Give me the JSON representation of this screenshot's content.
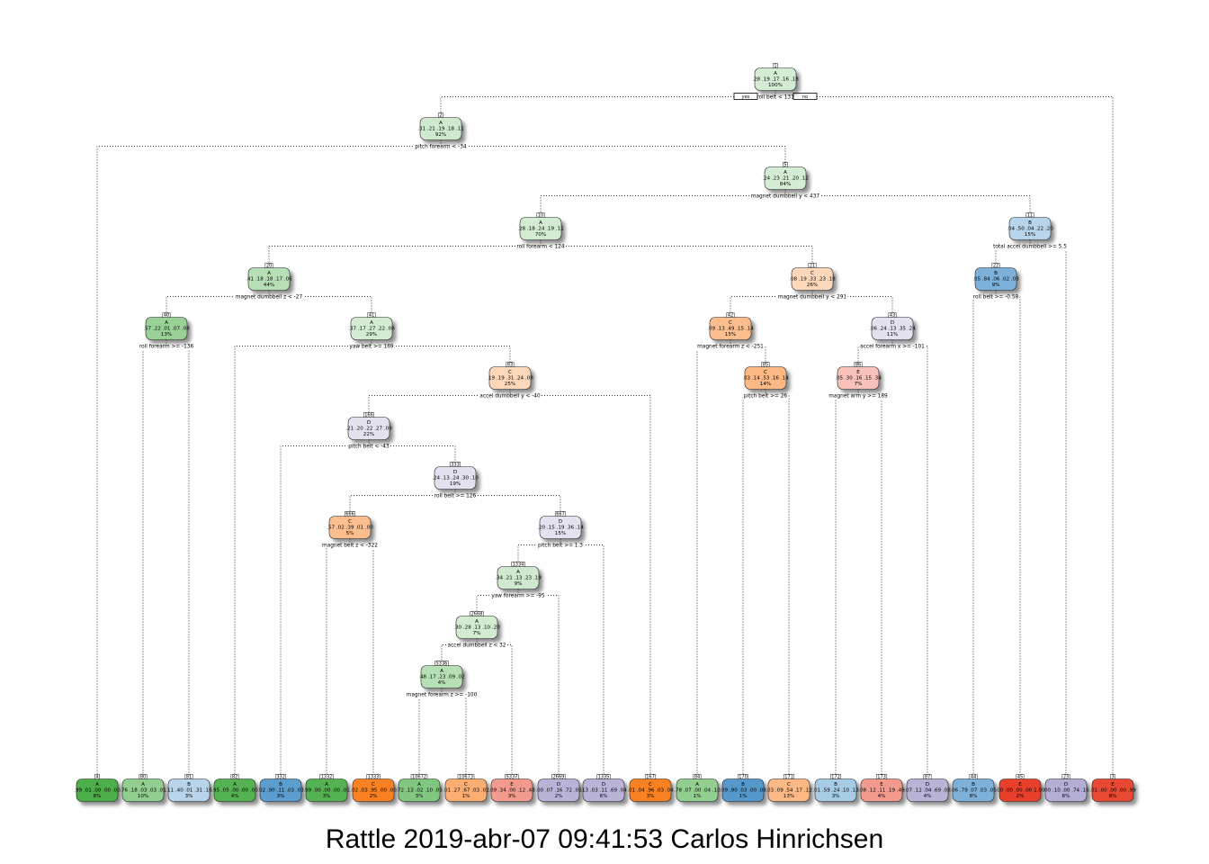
{
  "caption": "Rattle 2019-abr-07 09:41:53 Carlos Hinrichsen",
  "yes_label": "yes",
  "no_label": "no",
  "class_colors": {
    "A": "#4daf4a",
    "B": "#3b89c5",
    "C": "#f97b1a",
    "D": "#8e85bf",
    "E": "#e8412a"
  },
  "nodes": [
    {
      "id": 1,
      "cls": "A",
      "probs": ".28 .19 .17 .16 .18",
      "pct": "100%",
      "split": "roll_belt < 131",
      "strength": 0.1
    },
    {
      "id": 2,
      "cls": "A",
      "probs": ".31 .21 .19 .18 .11",
      "pct": "92%",
      "split": "pitch_forearm < -34",
      "strength": 0.15
    },
    {
      "id": 4,
      "cls": "A",
      "probs": ".99 .01 .00 .00 .00",
      "pct": "8%",
      "strength": 1.0
    },
    {
      "id": 5,
      "cls": "A",
      "probs": ".24 .23 .21 .20 .12",
      "pct": "84%",
      "split": "magnet_dumbbell_y < 437",
      "strength": 0.1
    },
    {
      "id": 10,
      "cls": "A",
      "probs": ".28 .18 .24 .19 .11",
      "pct": "70%",
      "split": "roll_forearm < 124",
      "strength": 0.12
    },
    {
      "id": 20,
      "cls": "A",
      "probs": ".41 .18 .18 .17 .06",
      "pct": "44%",
      "split": "magnet_dumbbell_z < -27",
      "strength": 0.3
    },
    {
      "id": 40,
      "cls": "A",
      "probs": ".57 .22 .01 .07 .08",
      "pct": "13%",
      "split": "roll_forearm >= -136",
      "strength": 0.5
    },
    {
      "id": 80,
      "cls": "A",
      "probs": ".76 .18 .03 .03 .01",
      "pct": "10%",
      "strength": 0.55
    },
    {
      "id": 81,
      "cls": "B",
      "probs": ".11 .40 .01 .31 .16",
      "pct": "3%",
      "strength": 0.25
    },
    {
      "id": 41,
      "cls": "A",
      "probs": ".37 .17 .27 .22 .08",
      "pct": "29%",
      "split": "yaw_belt >= 169",
      "strength": 0.12
    },
    {
      "id": 82,
      "cls": "A",
      "probs": ".95 .05 .00 .00 .00",
      "pct": "4%",
      "strength": 0.95
    },
    {
      "id": 83,
      "cls": "C",
      "probs": ".19 .19 .31 .24 .08",
      "pct": "25%",
      "split": "accel_dumbbell_y < -40",
      "strength": 0.18
    },
    {
      "id": 166,
      "cls": "D",
      "probs": ".21 .20 .22 .27 .09",
      "pct": "22%",
      "split": "pitch_belt < -43",
      "strength": 0.1
    },
    {
      "id": 332,
      "cls": "B",
      "probs": ".02 .90 .11 .03 .03",
      "pct": "3%",
      "strength": 0.8
    },
    {
      "id": 333,
      "cls": "D",
      "probs": ".24 .13 .24 .30 .10",
      "pct": "19%",
      "split": "roll_belt >= 126",
      "strength": 0.12
    },
    {
      "id": 666,
      "cls": "C",
      "probs": ".57 .02 .39 .01 .00",
      "pct": "5%",
      "split": "magnet_belt_z < -322",
      "strength": 0.4
    },
    {
      "id": 1332,
      "cls": "A",
      "probs": ".99 .00 .00 .00 .01",
      "pct": "3%",
      "strength": 0.95
    },
    {
      "id": 1333,
      "cls": "C",
      "probs": ".02 .03 .95 .00 .00",
      "pct": "2%",
      "strength": 0.95
    },
    {
      "id": 667,
      "cls": "D",
      "probs": ".20 .15 .19 .36 .14",
      "pct": "15%",
      "split": "pitch_belt >= 1.3",
      "strength": 0.1
    },
    {
      "id": 1334,
      "cls": "A",
      "probs": ".34 .21 .13 .23 .19",
      "pct": "9%",
      "split": "yaw_forearm >= -95",
      "strength": 0.15
    },
    {
      "id": 2668,
      "cls": "A",
      "probs": ".30 .28 .13 .10 .20",
      "pct": "7%",
      "split": "accel_dumbbell_z < 32",
      "strength": 0.12
    },
    {
      "id": 5336,
      "cls": "A",
      "probs": ".48 .17 .23 .09 .02",
      "pct": "4%",
      "split": "magnet_forearm_z >= -100",
      "strength": 0.3
    },
    {
      "id": 10672,
      "cls": "A",
      "probs": ".72 .13 .02 .10 .03",
      "pct": "3%",
      "strength": 0.65
    },
    {
      "id": 10673,
      "cls": "C",
      "probs": ".01 .27 .67 .03 .02",
      "pct": "1%",
      "strength": 0.55
    },
    {
      "id": 5337,
      "cls": "E",
      "probs": ".09 .34 .00 .12 .48",
      "pct": "3%",
      "strength": 0.45
    },
    {
      "id": 2669,
      "cls": "D",
      "probs": ".00 .07 .16 .72 .05",
      "pct": "2%",
      "strength": 0.55
    },
    {
      "id": 1335,
      "cls": "D",
      "probs": ".13 .03 .11 .69 .04",
      "pct": "6%",
      "strength": 0.55
    },
    {
      "id": 167,
      "cls": "C",
      "probs": ".01 .04 .96 .03 .04",
      "pct": "3%",
      "strength": 0.95
    },
    {
      "id": 21,
      "cls": "C",
      "probs": ".08 .19 .33 .23 .18",
      "pct": "26%",
      "split": "magnet_dumbbell_y < 291",
      "strength": 0.18
    },
    {
      "id": 42,
      "cls": "C",
      "probs": ".09 .13 .49 .15 .14",
      "pct": "15%",
      "split": "magnet_forearm_z < -251",
      "strength": 0.4
    },
    {
      "id": 84,
      "cls": "A",
      "probs": ".78 .07 .00 .04 .10",
      "pct": "1%",
      "strength": 0.55
    },
    {
      "id": 85,
      "cls": "C",
      "probs": ".03 .14 .53 .16 .14",
      "pct": "14%",
      "split": "pitch_belt >= 26",
      "strength": 0.45
    },
    {
      "id": 170,
      "cls": "B",
      "probs": ".09 .90 .03 .00 .08",
      "pct": "1%",
      "strength": 0.85
    },
    {
      "id": 171,
      "cls": "C",
      "probs": ".03 .09 .54 .17 .12",
      "pct": "13%",
      "strength": 0.45
    },
    {
      "id": 43,
      "cls": "D",
      "probs": ".06 .24 .13 .35 .24",
      "pct": "11%",
      "split": "accel_forearm_x >= -101",
      "strength": 0.12
    },
    {
      "id": 86,
      "cls": "E",
      "probs": ".05 .30 .16 .15 .34",
      "pct": "7%",
      "split": "magnet_arm_y >= 189",
      "strength": 0.2
    },
    {
      "id": 172,
      "cls": "B",
      "probs": ".01 .59 .24 .10 .13",
      "pct": "3%",
      "strength": 0.35
    },
    {
      "id": 173,
      "cls": "E",
      "probs": ".08 .12 .11 .19 .49",
      "pct": "4%",
      "strength": 0.45
    },
    {
      "id": 87,
      "cls": "D",
      "probs": ".07 .12 .04 .69 .08",
      "pct": "4%",
      "strength": 0.55
    },
    {
      "id": 11,
      "cls": "B",
      "probs": ".04 .50 .04 .22 .20",
      "pct": "15%",
      "split": "total_accel_dumbbell >= 5.5",
      "strength": 0.25
    },
    {
      "id": 22,
      "cls": "B",
      "probs": ".05 .84 .06 .02 .03",
      "pct": "9%",
      "split": "roll_belt >= -0.58",
      "strength": 0.6
    },
    {
      "id": 44,
      "cls": "B",
      "probs": ".06 .79 .07 .03 .05",
      "pct": "8%",
      "strength": 0.6
    },
    {
      "id": 45,
      "cls": "E",
      "probs": ".00 .00 .00 .00 1.00",
      "pct": "2%",
      "strength": 1.0
    },
    {
      "id": 23,
      "cls": "D",
      "probs": ".00 .10 .00 .74 .16",
      "pct": "6%",
      "strength": 0.6
    },
    {
      "id": 3,
      "cls": "E",
      "probs": ".01 .00 .00 .00 .99",
      "pct": "8%",
      "strength": 0.95
    }
  ]
}
